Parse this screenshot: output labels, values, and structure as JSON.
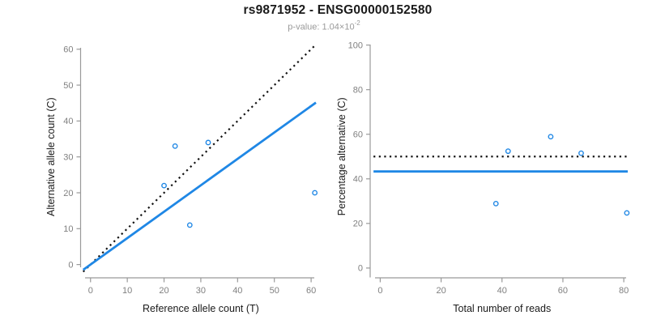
{
  "header": {
    "title": "rs9871952 - ENSG00000152580",
    "p_value": {
      "prefix": "p-value: ",
      "mantissa": "1.04",
      "base": "×10",
      "exponent": "-2"
    }
  },
  "colors": {
    "accent_blue": "#1f87e5",
    "dotted_black": "#111111",
    "axis_gray": "#999999",
    "tick_label_gray": "#808080",
    "axis_title_black": "#1a1a1a"
  },
  "chart_data": [
    {
      "type": "scatter",
      "name": "allele-count-panel",
      "xlabel": "Reference allele count (T)",
      "ylabel": "Alternative allele count (C)",
      "xticks": [
        0,
        10,
        20,
        30,
        40,
        50,
        60
      ],
      "yticks": [
        0,
        10,
        20,
        30,
        40,
        50,
        60
      ],
      "xlim": [
        0,
        61
      ],
      "ylim": [
        0,
        61
      ],
      "grid": false,
      "legend": "none",
      "points": [
        [
          20,
          22
        ],
        [
          23,
          33
        ],
        [
          27,
          11
        ],
        [
          32,
          34
        ],
        [
          61,
          20
        ]
      ],
      "lines": [
        {
          "name": "identity-line",
          "style": "dotted",
          "color": "black",
          "x": [
            -2,
            61.3
          ],
          "y": [
            -2,
            61.3
          ]
        },
        {
          "name": "fit-line",
          "style": "solid",
          "color": "blue",
          "x": [
            -2,
            61.3
          ],
          "y": [
            -1.47,
            45.12
          ]
        }
      ]
    },
    {
      "type": "scatter",
      "name": "percentage-panel",
      "xlabel": "Total number of reads",
      "ylabel": "Percentage alternative (C)",
      "xticks": [
        0,
        20,
        40,
        60,
        80
      ],
      "yticks": [
        0,
        20,
        40,
        60,
        80,
        100
      ],
      "xlim": [
        0,
        81
      ],
      "ylim": [
        0,
        100
      ],
      "grid": false,
      "legend": "none",
      "points": [
        [
          38,
          28.9
        ],
        [
          42,
          52.4
        ],
        [
          56,
          58.9
        ],
        [
          66,
          51.5
        ],
        [
          81,
          24.7
        ]
      ],
      "lines": [
        {
          "name": "expected-50pct-line",
          "style": "dotted",
          "color": "black",
          "x": [
            -2.2,
            81.3
          ],
          "y": [
            50,
            50
          ]
        },
        {
          "name": "mean-percentage-line",
          "style": "solid",
          "color": "blue",
          "x": [
            -2.2,
            81.3
          ],
          "y": [
            43.3,
            43.3
          ]
        }
      ]
    }
  ]
}
